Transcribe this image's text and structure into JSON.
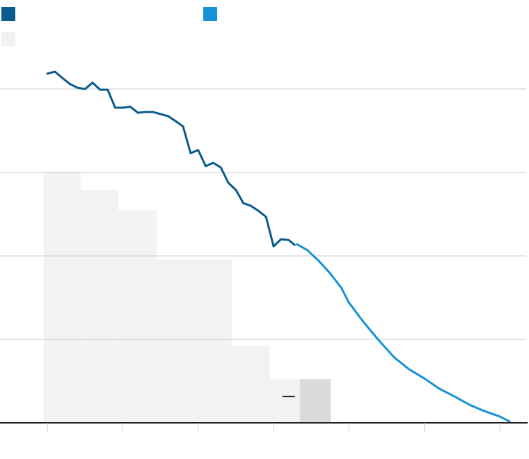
{
  "colors": {
    "historical": "#0a5a8c",
    "projected": "#1592d8",
    "band": "#f2f2f2",
    "band_dark": "#dadada",
    "grid": "#cccccc",
    "axis": "#222222",
    "marker": "#222222"
  },
  "legend": [
    {
      "key": "historical",
      "label": "",
      "color": "#0a5a8c"
    },
    {
      "key": "projected",
      "label": "",
      "color": "#1592d8"
    },
    {
      "key": "band",
      "label": "",
      "color": "#f2f2f2"
    }
  ],
  "chart_data": {
    "type": "line",
    "title": "",
    "xlabel": "",
    "ylabel": "",
    "xlim": [
      0,
      700
    ],
    "ylim": [
      0,
      100
    ],
    "x_ticks": [
      0,
      100,
      200,
      300,
      400,
      500,
      600
    ],
    "x_tick_labels": [
      "",
      "",
      "",
      "",
      "",
      "",
      ""
    ],
    "y_gridlines": [
      25,
      50,
      75,
      100
    ],
    "y_tick_labels": [
      "",
      "",
      "",
      ""
    ],
    "grid": true,
    "legend_position": "top-left",
    "series": [
      {
        "key": "historical",
        "points": [
          [
            0,
            104.6
          ],
          [
            10,
            105.2
          ],
          [
            20,
            103.3
          ],
          [
            30,
            101.5
          ],
          [
            40,
            100.4
          ],
          [
            50,
            100.0
          ],
          [
            60,
            101.9
          ],
          [
            70,
            99.8
          ],
          [
            80,
            99.8
          ],
          [
            90,
            94.4
          ],
          [
            100,
            94.4
          ],
          [
            110,
            94.7
          ],
          [
            120,
            92.9
          ],
          [
            130,
            93.1
          ],
          [
            140,
            93.1
          ],
          [
            150,
            92.5
          ],
          [
            160,
            91.9
          ],
          [
            170,
            90.4
          ],
          [
            180,
            88.8
          ],
          [
            190,
            80.8
          ],
          [
            200,
            81.7
          ],
          [
            210,
            76.9
          ],
          [
            220,
            77.9
          ],
          [
            230,
            76.5
          ],
          [
            240,
            71.9
          ],
          [
            250,
            69.8
          ],
          [
            260,
            65.8
          ],
          [
            270,
            65.0
          ],
          [
            280,
            63.5
          ],
          [
            290,
            61.7
          ],
          [
            300,
            52.9
          ],
          [
            310,
            55.0
          ],
          [
            320,
            54.8
          ],
          [
            328,
            53.3
          ]
        ]
      },
      {
        "key": "projected",
        "points": [
          [
            331,
            53.5
          ],
          [
            345,
            51.7
          ],
          [
            360,
            48.5
          ],
          [
            375,
            44.8
          ],
          [
            390,
            40.4
          ],
          [
            400,
            36.0
          ],
          [
            420,
            30.0
          ],
          [
            440,
            24.6
          ],
          [
            460,
            19.6
          ],
          [
            480,
            16.0
          ],
          [
            500,
            13.3
          ],
          [
            520,
            10.2
          ],
          [
            540,
            7.9
          ],
          [
            560,
            5.4
          ],
          [
            580,
            3.5
          ],
          [
            600,
            1.9
          ],
          [
            613,
            0.4
          ]
        ]
      }
    ],
    "bands": [
      {
        "x_start": -5,
        "x_end": 44,
        "value": 75.2,
        "shade": "band"
      },
      {
        "x_start": 44,
        "x_end": 94,
        "value": 69.8,
        "shade": "band"
      },
      {
        "x_start": 94,
        "x_end": 145,
        "value": 63.7,
        "shade": "band"
      },
      {
        "x_start": 145,
        "x_end": 245,
        "value": 48.8,
        "shade": "band"
      },
      {
        "x_start": 245,
        "x_end": 295,
        "value": 23.1,
        "shade": "band"
      },
      {
        "x_start": 295,
        "x_end": 335,
        "value": 13.1,
        "shade": "band"
      },
      {
        "x_start": 335,
        "x_end": 376,
        "value": 13.1,
        "shade": "band_dark"
      }
    ],
    "marker": {
      "x": 320,
      "y": 7.9
    }
  }
}
